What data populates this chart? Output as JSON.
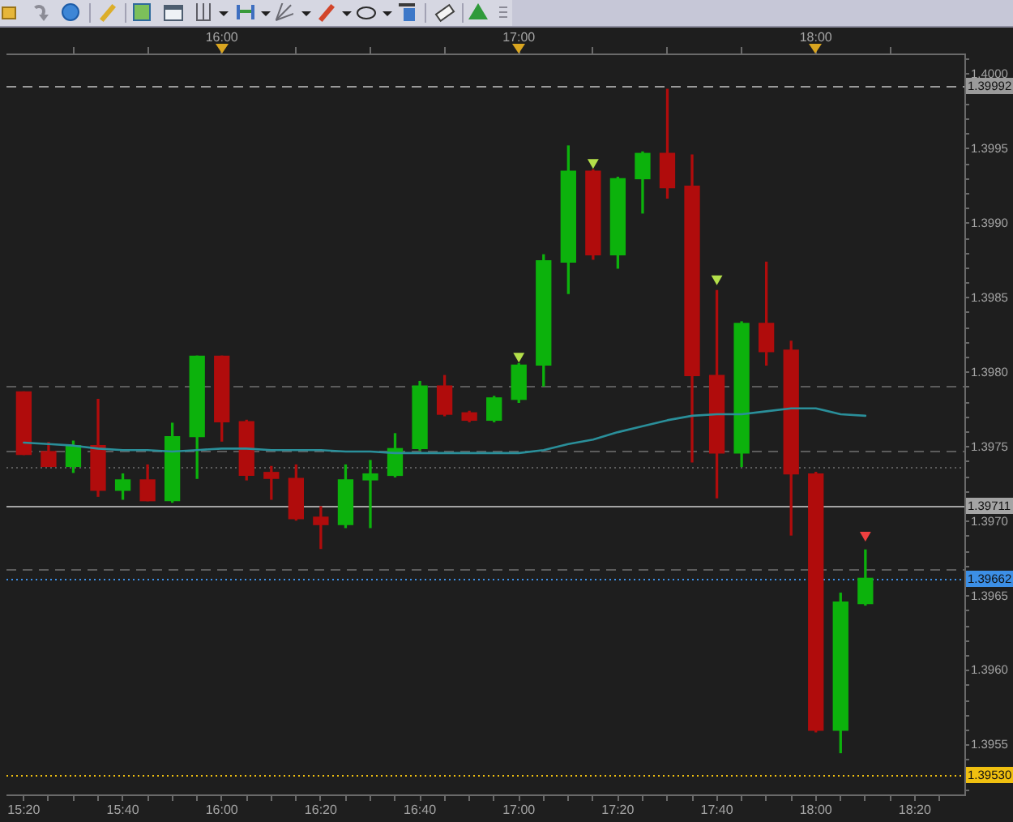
{
  "chart_data": {
    "type": "candlestick",
    "x": [
      15.3333,
      15.4167,
      15.5,
      15.5833,
      15.6667,
      15.75,
      15.8333,
      15.9167,
      16,
      16.0833,
      16.1667,
      16.25,
      16.3333,
      16.4167,
      16.5,
      16.5833,
      16.6667,
      16.75,
      16.8333,
      16.9167,
      17,
      17.0833,
      17.1667,
      17.25,
      17.3333,
      17.4167,
      17.5,
      17.5833,
      17.6667,
      17.75,
      17.8333,
      17.9167,
      18,
      18.0833,
      18.1667
    ],
    "ohlc": [
      [
        1.39787,
        1.39787,
        1.39745,
        1.39745
      ],
      [
        1.39747,
        1.39753,
        1.39737,
        1.39737
      ],
      [
        1.39737,
        1.39754,
        1.39733,
        1.39751
      ],
      [
        1.39751,
        1.39782,
        1.39717,
        1.39721
      ],
      [
        1.39721,
        1.39732,
        1.39715,
        1.39728
      ],
      [
        1.39728,
        1.39738,
        1.39714,
        1.39714
      ],
      [
        1.39714,
        1.39766,
        1.39713,
        1.39757
      ],
      [
        1.39757,
        1.39811,
        1.39729,
        1.39811
      ],
      [
        1.39811,
        1.39811,
        1.39754,
        1.39767
      ],
      [
        1.39767,
        1.39768,
        1.39728,
        1.39731
      ],
      [
        1.39733,
        1.39737,
        1.39715,
        1.39729
      ],
      [
        1.39729,
        1.39738,
        1.39701,
        1.39702
      ],
      [
        1.39703,
        1.3971,
        1.39682,
        1.39698
      ],
      [
        1.39698,
        1.39738,
        1.39696,
        1.39728
      ],
      [
        1.39728,
        1.39741,
        1.39696,
        1.39732
      ],
      [
        1.39731,
        1.39759,
        1.3973,
        1.39749
      ],
      [
        1.39749,
        1.39794,
        1.39748,
        1.39791
      ],
      [
        1.39791,
        1.39798,
        1.39771,
        1.39772
      ],
      [
        1.39773,
        1.39774,
        1.39767,
        1.39768
      ],
      [
        1.39768,
        1.39784,
        1.39767,
        1.39783
      ],
      [
        1.39782,
        1.39806,
        1.3978,
        1.39805
      ],
      [
        1.39805,
        1.39879,
        1.39791,
        1.39875
      ],
      [
        1.39874,
        1.39952,
        1.39853,
        1.39935
      ],
      [
        1.39935,
        1.39936,
        1.39876,
        1.39879
      ],
      [
        1.39879,
        1.39931,
        1.3987,
        1.3993
      ],
      [
        1.3993,
        1.39948,
        1.39907,
        1.39947
      ],
      [
        1.39947,
        1.3999,
        1.39917,
        1.39924
      ],
      [
        1.39925,
        1.39946,
        1.3974,
        1.39798
      ],
      [
        1.39798,
        1.39855,
        1.39716,
        1.39746
      ],
      [
        1.39746,
        1.39834,
        1.39737,
        1.39833
      ],
      [
        1.39833,
        1.39874,
        1.39805,
        1.39814
      ],
      [
        1.39815,
        1.39821,
        1.39691,
        1.39732
      ],
      [
        1.39732,
        1.39733,
        1.39559,
        1.3956
      ],
      [
        1.3956,
        1.39652,
        1.39545,
        1.39646
      ],
      [
        1.39645,
        1.39681,
        1.39644,
        1.39662
      ]
    ],
    "colors": [
      "#b00c0c",
      "#b00c0c",
      "#0cb20c",
      "#b00c0c",
      "#0cb20c",
      "#b00c0c",
      "#0cb20c",
      "#0cb20c",
      "#b00c0c",
      "#b00c0c",
      "#b00c0c",
      "#b00c0c",
      "#b00c0c",
      "#0cb20c",
      "#0cb20c",
      "#0cb20c",
      "#0cb20c",
      "#b00c0c",
      "#b00c0c",
      "#0cb20c",
      "#0cb20c",
      "#0cb20c",
      "#0cb20c",
      "#b00c0c",
      "#0cb20c",
      "#0cb20c",
      "#b00c0c",
      "#b00c0c",
      "#b00c0c",
      "#0cb20c",
      "#b00c0c",
      "#b00c0c",
      "#b00c0c",
      "#0cb20c",
      "#0cb20c"
    ],
    "series": [
      {
        "type": "line",
        "color": "#2a8f9a",
        "values": [
          1.39753,
          1.39752,
          1.39751,
          1.39749,
          1.39748,
          1.39748,
          1.39747,
          1.39748,
          1.39749,
          1.39749,
          1.39748,
          1.39748,
          1.39748,
          1.39747,
          1.39747,
          1.39746,
          1.39746,
          1.39746,
          1.39746,
          1.39746,
          1.39746,
          1.39748,
          1.39752,
          1.39755,
          1.3976,
          1.39764,
          1.39768,
          1.39771,
          1.39772,
          1.39772,
          1.39774,
          1.39776,
          1.39776,
          1.39772,
          1.39771
        ]
      },
      {
        "type": "scatter",
        "marker": "triangle",
        "x": [
          17,
          17.25,
          17.6667,
          18.1667
        ],
        "values": [
          1.39811,
          1.39941,
          1.39863,
          1.39691
        ],
        "colors": [
          "#b4e04a",
          "#b4e04a",
          "#b4e04a",
          "#f04040"
        ]
      }
    ],
    "xlim": [
      15.275,
      18.5
    ],
    "xticks": [
      {
        "value": 15.3333,
        "label": "15:20"
      },
      {
        "value": 15.4167,
        "label": null
      },
      {
        "value": 15.5,
        "label": null
      },
      {
        "value": 15.5833,
        "label": null
      },
      {
        "value": 15.6667,
        "label": "15:40"
      },
      {
        "value": 15.75,
        "label": null
      },
      {
        "value": 15.8333,
        "label": null
      },
      {
        "value": 15.9167,
        "label": null
      },
      {
        "value": 16,
        "label": "16:00"
      },
      {
        "value": 16.0833,
        "label": null
      },
      {
        "value": 16.1667,
        "label": null
      },
      {
        "value": 16.25,
        "label": null
      },
      {
        "value": 16.3333,
        "label": "16:20"
      },
      {
        "value": 16.4167,
        "label": null
      },
      {
        "value": 16.5,
        "label": null
      },
      {
        "value": 16.5833,
        "label": null
      },
      {
        "value": 16.6667,
        "label": "16:40"
      },
      {
        "value": 16.75,
        "label": null
      },
      {
        "value": 16.8333,
        "label": null
      },
      {
        "value": 16.9167,
        "label": null
      },
      {
        "value": 17,
        "label": "17:00"
      },
      {
        "value": 17.0833,
        "label": null
      },
      {
        "value": 17.1667,
        "label": null
      },
      {
        "value": 17.25,
        "label": null
      },
      {
        "value": 17.3333,
        "label": "17:20"
      },
      {
        "value": 17.4167,
        "label": null
      },
      {
        "value": 17.5,
        "label": null
      },
      {
        "value": 17.5833,
        "label": null
      },
      {
        "value": 17.6667,
        "label": "17:40"
      },
      {
        "value": 17.75,
        "label": null
      },
      {
        "value": 17.8333,
        "label": null
      },
      {
        "value": 17.9167,
        "label": null
      },
      {
        "value": 18,
        "label": "18:00"
      },
      {
        "value": 18.0833,
        "label": null
      },
      {
        "value": 18.1667,
        "label": null
      },
      {
        "value": 18.25,
        "label": null
      },
      {
        "value": 18.3333,
        "label": "18:20"
      },
      {
        "value": 18.4167,
        "label": null
      }
    ],
    "x2lim": [
      15.275,
      18.5
    ],
    "x2ticks": [
      {
        "value": 15.5,
        "label": null
      },
      {
        "value": 15.75,
        "label": null
      },
      {
        "value": 16,
        "label": "16:00"
      },
      {
        "value": 16.25,
        "label": null
      },
      {
        "value": 16.5,
        "label": null
      },
      {
        "value": 16.75,
        "label": null
      },
      {
        "value": 17,
        "label": "17:00"
      },
      {
        "value": 17.25,
        "label": null
      },
      {
        "value": 17.5,
        "label": null
      },
      {
        "value": 17.75,
        "label": null
      },
      {
        "value": 18,
        "label": "18:00"
      },
      {
        "value": 18.25,
        "label": null
      }
    ],
    "ylim": [
      1.39517,
      1.40014
    ],
    "yticks": [
      {
        "value": 1.3952,
        "label": null
      },
      {
        "value": 1.3953,
        "label": null
      },
      {
        "value": 1.3954,
        "label": null
      },
      1.3955,
      {
        "value": 1.3956,
        "label": null
      },
      {
        "value": 1.3957,
        "label": null
      },
      {
        "value": 1.3958,
        "label": null
      },
      {
        "value": 1.3959,
        "label": null
      },
      {
        "value": 1.396,
        "label": "1.3960"
      },
      {
        "value": 1.3961,
        "label": null
      },
      {
        "value": 1.3962,
        "label": null
      },
      {
        "value": 1.3963,
        "label": null
      },
      {
        "value": 1.3964,
        "label": null
      },
      1.3965,
      {
        "value": 1.3966,
        "label": null
      },
      {
        "value": 1.3967,
        "label": null
      },
      {
        "value": 1.3968,
        "label": null
      },
      {
        "value": 1.3969,
        "label": null
      },
      {
        "value": 1.397,
        "label": "1.3970"
      },
      {
        "value": 1.3971,
        "label": null
      },
      {
        "value": 1.3972,
        "label": null
      },
      {
        "value": 1.3973,
        "label": null
      },
      {
        "value": 1.3974,
        "label": null
      },
      1.3975,
      {
        "value": 1.3976,
        "label": null
      },
      {
        "value": 1.3977,
        "label": null
      },
      {
        "value": 1.3978,
        "label": null
      },
      {
        "value": 1.3979,
        "label": null
      },
      {
        "value": 1.398,
        "label": "1.3980"
      },
      {
        "value": 1.3981,
        "label": null
      },
      {
        "value": 1.3982,
        "label": null
      },
      {
        "value": 1.3983,
        "label": null
      },
      {
        "value": 1.3984,
        "label": null
      },
      1.3985,
      {
        "value": 1.3986,
        "label": null
      },
      {
        "value": 1.3987,
        "label": null
      },
      {
        "value": 1.3988,
        "label": null
      },
      {
        "value": 1.3989,
        "label": null
      },
      {
        "value": 1.399,
        "label": "1.3990"
      },
      {
        "value": 1.3991,
        "label": null
      },
      {
        "value": 1.3992,
        "label": null
      },
      {
        "value": 1.3993,
        "label": null
      },
      {
        "value": 1.3994,
        "label": null
      },
      1.3995,
      {
        "value": 1.3996,
        "label": null
      },
      {
        "value": 1.3997,
        "label": null
      },
      {
        "value": 1.3998,
        "label": null
      },
      {
        "value": 1.3999,
        "label": null
      },
      {
        "value": 1.4,
        "label": "1.4000"
      },
      {
        "value": 1.4001,
        "label": null
      }
    ],
    "ref_lines": [
      {
        "axis": "y",
        "value": 1.39992,
        "label": "1.39992",
        "color": "#9a9a9a",
        "line_style": "dashed"
      },
      {
        "axis": "y",
        "value": 1.39791,
        "color": "#5c5c5c",
        "line_style": "dashed"
      },
      {
        "axis": "y",
        "value": 1.39748,
        "color": "#5c5c5c",
        "line_style": "dashed"
      },
      {
        "axis": "y",
        "value": 1.39737,
        "color": "#5c5c5c",
        "line_style": "dotted"
      },
      {
        "axis": "y",
        "value": 1.39711,
        "label": "1.39711",
        "color": "#a4a4a4",
        "line_style": "solid"
      },
      {
        "axis": "y",
        "value": 1.39668,
        "color": "#5c5c5c",
        "line_style": "dashed"
      },
      {
        "axis": "y",
        "value": 1.39662,
        "label": "1.39662",
        "color": "#3c8fe6",
        "line_style": "dotted"
      },
      {
        "axis": "y",
        "value": 1.3953,
        "label": "1.39530",
        "color": "#f0c010",
        "line_style": "dotted"
      }
    ]
  }
}
